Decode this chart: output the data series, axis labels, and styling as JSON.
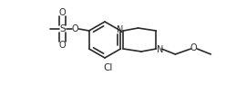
{
  "bg_color": "#ffffff",
  "line_color": "#2a2a2a",
  "line_width": 1.2,
  "font_size_label": 7.0,
  "figsize": [
    2.48,
    0.94
  ],
  "dpi": 100,
  "xlim": [
    0,
    248
  ],
  "ylim": [
    0,
    94
  ]
}
